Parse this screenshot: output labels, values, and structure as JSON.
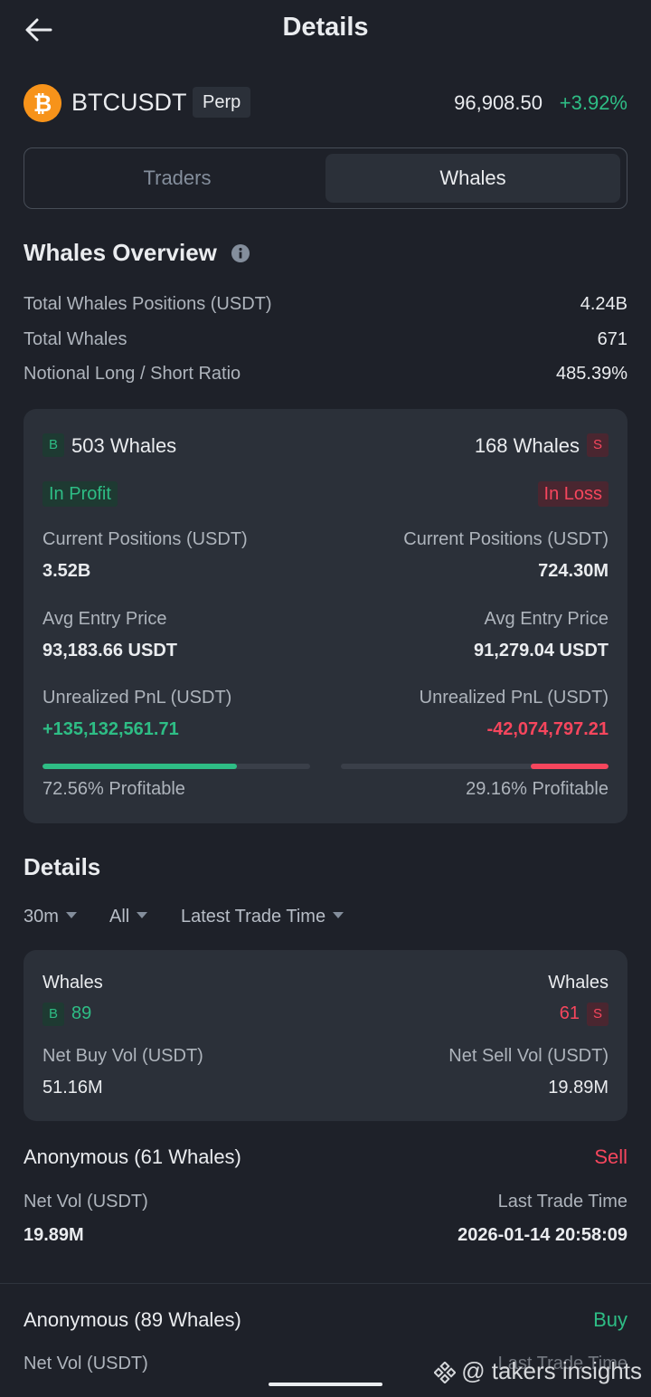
{
  "header": {
    "title": "Details"
  },
  "symbol": {
    "name": "BTCUSDT",
    "tag": "Perp",
    "price": "96,908.50",
    "change": "+3.92%"
  },
  "tabs": [
    {
      "label": "Traders"
    },
    {
      "label": "Whales"
    }
  ],
  "overview": {
    "title": "Whales Overview",
    "stats": [
      {
        "label": "Total Whales Positions (USDT)",
        "value": "4.24B"
      },
      {
        "label": "Total Whales",
        "value": "671"
      },
      {
        "label": "Notional Long / Short Ratio",
        "value": "485.39%"
      }
    ]
  },
  "profit_card": {
    "long": {
      "badge": "B",
      "count": "503 Whales",
      "tag": "In Profit",
      "positions_label": "Current Positions (USDT)",
      "positions": "3.52B",
      "entry_label": "Avg Entry Price",
      "entry": "93,183.66 USDT",
      "pnl_label": "Unrealized PnL (USDT)",
      "pnl": "+135,132,561.71",
      "profitable_fraction": 0.7256,
      "profitable_text": "72.56% Profitable"
    },
    "short": {
      "badge": "S",
      "count": "168 Whales",
      "tag": "In Loss",
      "positions_label": "Current Positions (USDT)",
      "positions": "724.30M",
      "entry_label": "Avg Entry Price",
      "entry": "91,279.04 USDT",
      "pnl_label": "Unrealized PnL (USDT)",
      "pnl": "-42,074,797.21",
      "profitable_fraction": 0.2916,
      "profitable_text": "29.16% Profitable"
    }
  },
  "details": {
    "title": "Details",
    "filters": [
      {
        "label": "30m"
      },
      {
        "label": "All"
      },
      {
        "label": "Latest Trade Time"
      }
    ],
    "summary": {
      "buy": {
        "label": "Whales",
        "badge": "B",
        "count": "89",
        "vol_label": "Net Buy Vol (USDT)",
        "vol": "51.16M"
      },
      "sell": {
        "label": "Whales",
        "badge": "S",
        "count": "61",
        "vol_label": "Net Sell Vol (USDT)",
        "vol": "19.89M"
      }
    },
    "trades": [
      {
        "title": "Anonymous (61 Whales)",
        "side": "Sell",
        "vol_label": "Net Vol (USDT)",
        "vol": "19.89M",
        "time_label": "Last Trade Time",
        "time": "2026-01-14 20:58:09"
      },
      {
        "title": "Anonymous (89 Whales)",
        "side": "Buy",
        "vol_label": "Net Vol (USDT)",
        "time_label": "Last Trade Time"
      }
    ]
  },
  "watermark": {
    "text": "@ takers insights"
  },
  "colors": {
    "green": "#2ebd85",
    "red": "#f6465d",
    "bg": "#1e2129",
    "card": "#2b3039",
    "btc": "#f7931a"
  }
}
